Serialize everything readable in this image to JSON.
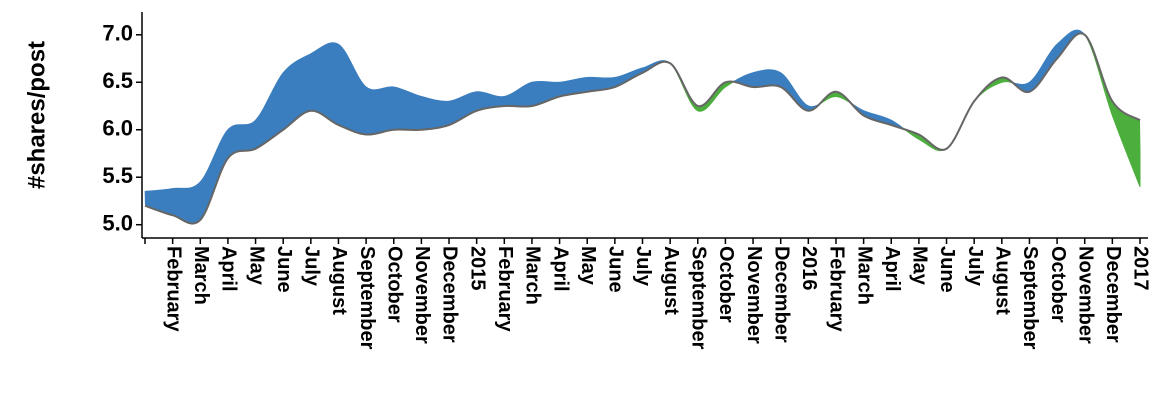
{
  "chart_data": {
    "type": "difference",
    "y_label": "#shares/post",
    "categories": [
      null,
      "February",
      "March",
      "April",
      "May",
      "June",
      "July",
      "August",
      "September",
      "October",
      "November",
      "December",
      "2015",
      "February",
      "March",
      "April",
      "May",
      "June",
      "July",
      "August",
      "September",
      "October",
      "November",
      "December",
      "2016",
      "February",
      "March",
      "April",
      "May",
      "June",
      "July",
      "August",
      "September",
      "October",
      "November",
      "December",
      "2017"
    ],
    "series": [
      {
        "color": "#3a7ebf",
        "values": [
          5.35,
          5.38,
          5.45,
          6.0,
          6.1,
          6.6,
          6.8,
          6.9,
          6.45,
          6.45,
          6.35,
          6.3,
          6.4,
          6.35,
          6.5,
          6.5,
          6.55,
          6.55,
          6.65,
          6.7,
          6.2,
          6.45,
          6.6,
          6.6,
          6.25,
          6.35,
          6.2,
          6.1,
          5.9,
          5.8,
          6.3,
          6.5,
          6.5,
          6.9,
          7.0,
          6.15,
          5.4
        ]
      },
      {
        "color": "#4cae3c",
        "values": [
          5.2,
          5.1,
          5.05,
          5.7,
          5.8,
          6.0,
          6.2,
          6.05,
          5.95,
          6.0,
          6.0,
          6.05,
          6.2,
          6.25,
          6.25,
          6.35,
          6.4,
          6.45,
          6.6,
          6.7,
          6.25,
          6.5,
          6.45,
          6.45,
          6.2,
          6.4,
          6.15,
          6.05,
          5.95,
          5.8,
          6.3,
          6.55,
          6.4,
          6.75,
          7.0,
          6.3,
          6.1
        ]
      }
    ],
    "ylim": [
      4.86,
      7.24
    ],
    "yticks": [
      {
        "value": 5,
        "label": "5.0"
      },
      5.5,
      {
        "value": 6,
        "label": "6.0"
      },
      6.5,
      {
        "value": 7,
        "label": "7.0"
      }
    ]
  }
}
